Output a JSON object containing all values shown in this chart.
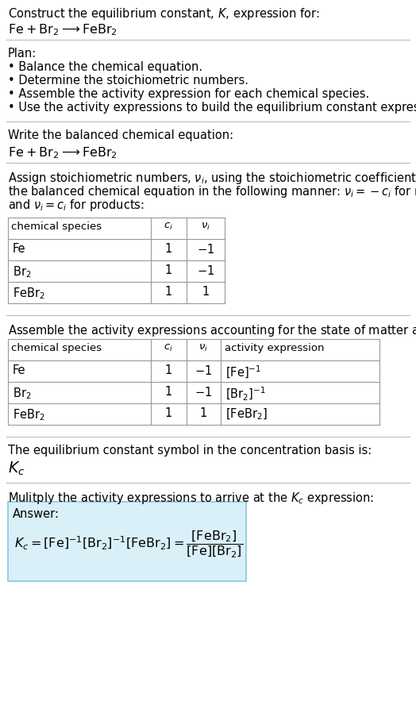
{
  "bg_color": "#ffffff",
  "text_color": "#000000",
  "title_line1": "Construct the equilibrium constant, $K$, expression for:",
  "title_line2": "$\\mathrm{Fe + Br_2 \\longrightarrow FeBr_2}$",
  "plan_header": "Plan:",
  "plan_bullets": [
    "Balance the chemical equation.",
    "Determine the stoichiometric numbers.",
    "Assemble the activity expression for each chemical species.",
    "Use the activity expressions to build the equilibrium constant expression."
  ],
  "section2_header": "Write the balanced chemical equation:",
  "section2_eq": "$\\mathrm{Fe + Br_2 \\longrightarrow FeBr_2}$",
  "section3_header_parts": [
    "Assign stoichiometric numbers, $\\nu_i$, using the stoichiometric coefficients, $c_i$, from",
    "the balanced chemical equation in the following manner: $\\nu_i = -c_i$ for reactants",
    "and $\\nu_i = c_i$ for products:"
  ],
  "table1_headers": [
    "chemical species",
    "$c_i$",
    "$\\nu_i$"
  ],
  "table1_rows": [
    [
      "Fe",
      "1",
      "$-1$"
    ],
    [
      "$\\mathrm{Br_2}$",
      "1",
      "$-1$"
    ],
    [
      "$\\mathrm{FeBr_2}$",
      "1",
      "1"
    ]
  ],
  "section4_header": "Assemble the activity expressions accounting for the state of matter and $\\nu_i$:",
  "table2_headers": [
    "chemical species",
    "$c_i$",
    "$\\nu_i$",
    "activity expression"
  ],
  "table2_rows": [
    [
      "Fe",
      "1",
      "$-1$",
      "$[\\mathrm{Fe}]^{-1}$"
    ],
    [
      "$\\mathrm{Br_2}$",
      "1",
      "$-1$",
      "$[\\mathrm{Br_2}]^{-1}$"
    ],
    [
      "$\\mathrm{FeBr_2}$",
      "1",
      "1",
      "$[\\mathrm{FeBr_2}]$"
    ]
  ],
  "section5_header": "The equilibrium constant symbol in the concentration basis is:",
  "section5_symbol": "$K_c$",
  "section6_header": "Mulitply the activity expressions to arrive at the $K_c$ expression:",
  "answer_label": "Answer:",
  "answer_box_color": "#d9f0f8",
  "answer_box_edge": "#85c8e0",
  "divider_color": "#bbbbbb",
  "table_border_color": "#999999",
  "font_size": 10.5,
  "small_font": 9.5
}
